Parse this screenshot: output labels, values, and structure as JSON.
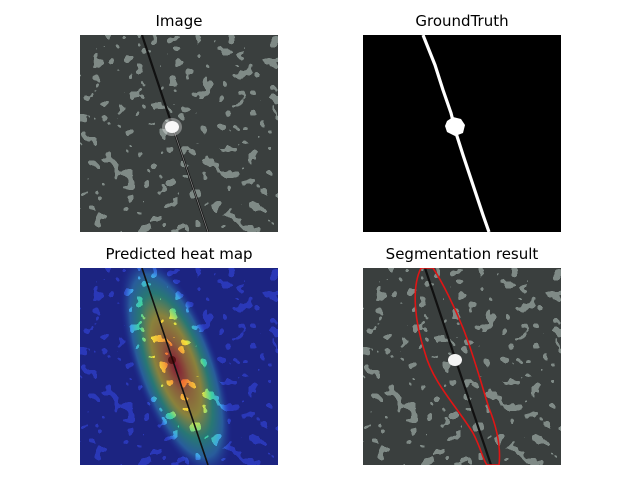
{
  "figure": {
    "panels": [
      {
        "title": "Image"
      },
      {
        "title": "GroundTruth"
      },
      {
        "title": "Predicted heat map"
      },
      {
        "title": "Segmentation result"
      }
    ]
  },
  "colors": {
    "speckle_background": "#7f8a86",
    "speckle_dark": "#2f3331",
    "crack_dark": "#111111",
    "crack_light": "#d8d8d8",
    "mask_background": "#000000",
    "mask_foreground": "#ffffff",
    "heat_cold": "#1a2aa8",
    "heat_mid": "#3fd0d8",
    "heat_warm": "#f2e33a",
    "heat_hot": "#e8262a",
    "contour": "#e01515"
  }
}
